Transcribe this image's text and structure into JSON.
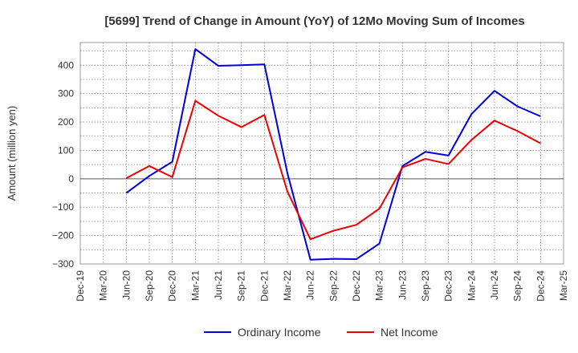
{
  "chart_data": {
    "type": "line",
    "title": "[5699]  Trend of Change in Amount (YoY) of 12Mo Moving Sum of Incomes",
    "ylabel": "Amount (million yen)",
    "xlabel": "",
    "x": [
      "Dec-19",
      "Mar-20",
      "Jun-20",
      "Sep-20",
      "Dec-20",
      "Mar-21",
      "Jun-21",
      "Sep-21",
      "Dec-21",
      "Mar-22",
      "Jun-22",
      "Sep-22",
      "Dec-22",
      "Mar-23",
      "Jun-23",
      "Sep-23",
      "Dec-23",
      "Mar-24",
      "Jun-24",
      "Sep-24",
      "Dec-24",
      "Mar-25"
    ],
    "ylim": [
      -300,
      480
    ],
    "yticks": [
      -300,
      -200,
      -100,
      0,
      100,
      200,
      300,
      400
    ],
    "ytick_labels": [
      "−300",
      "−200",
      "−100",
      "0",
      "100",
      "200",
      "300",
      "400"
    ],
    "grid": true,
    "legend_position": "bottom",
    "series": [
      {
        "name": "Ordinary Income",
        "color": "#0000dd",
        "values": [
          null,
          null,
          -50,
          10,
          60,
          457,
          398,
          400,
          403,
          20,
          -285,
          -282,
          -283,
          -228,
          45,
          95,
          82,
          228,
          310,
          255,
          220,
          null
        ]
      },
      {
        "name": "Net Income",
        "color": "#ee0000",
        "values": [
          null,
          null,
          2,
          45,
          6,
          275,
          222,
          182,
          225,
          -45,
          -213,
          -183,
          -162,
          -105,
          40,
          70,
          52,
          137,
          205,
          168,
          125,
          null
        ]
      }
    ]
  }
}
